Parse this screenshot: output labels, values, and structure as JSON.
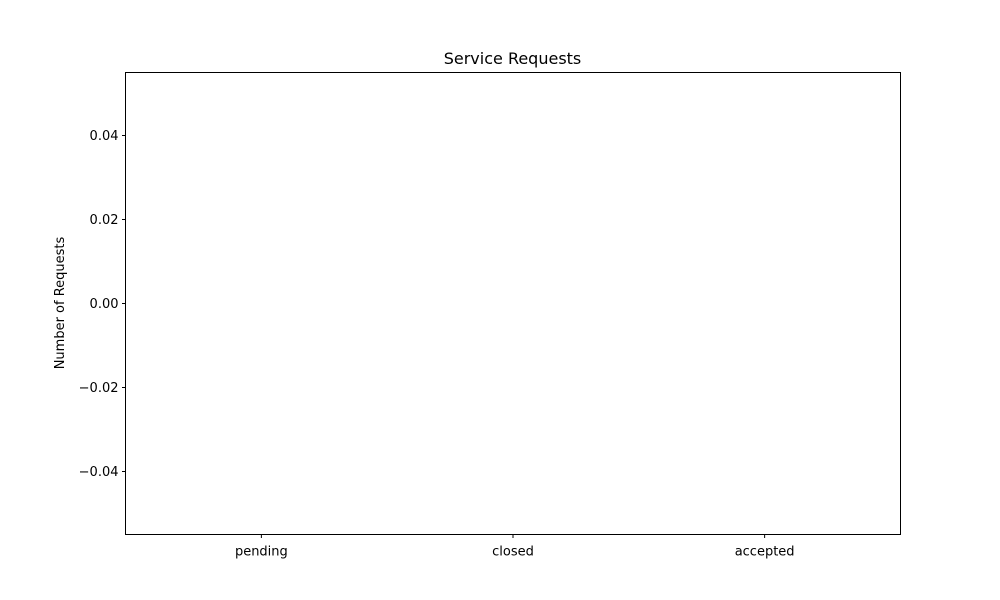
{
  "chart_data": {
    "type": "bar",
    "title": "Service Requests",
    "xlabel": "",
    "ylabel": "Number of Requests",
    "categories": [
      "pending",
      "closed",
      "accepted"
    ],
    "values": [
      0,
      0,
      0
    ],
    "ylim": [
      -0.055,
      0.055
    ],
    "yticks": [
      -0.04,
      -0.02,
      0.0,
      0.02,
      0.04
    ],
    "ytick_labels": [
      "−0.04",
      "−0.02",
      "0.00",
      "0.02",
      "0.04"
    ],
    "grid": false,
    "legend": "none",
    "colors": {
      "axis": "#000000",
      "bar": "#1f77b4",
      "background": "#ffffff"
    }
  }
}
